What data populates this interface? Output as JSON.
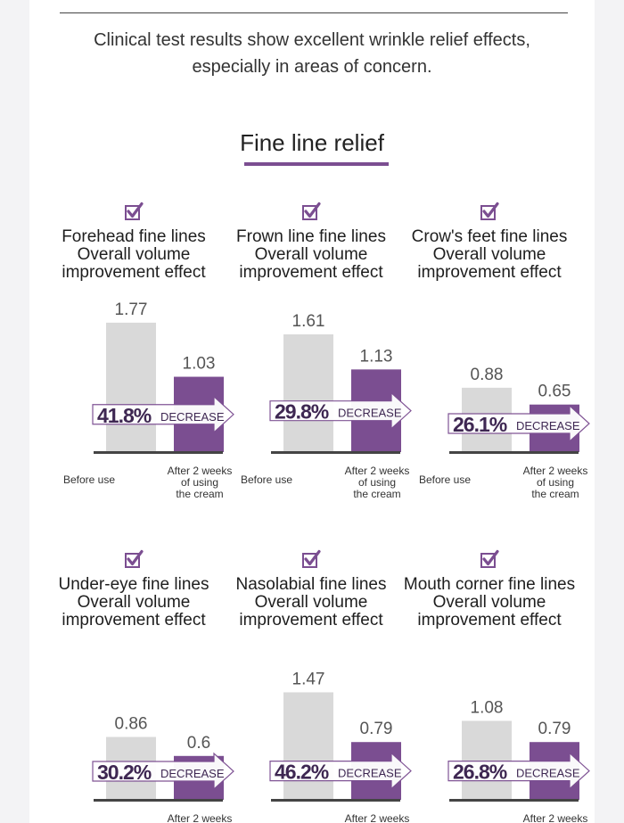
{
  "intro": {
    "line1": "Clinical test results show excellent wrinkle relief effects,",
    "line2": "especially in areas of concern."
  },
  "section_title": "Fine line relief",
  "colors": {
    "before_bar": "#d9d9d9",
    "after_bar": "#7b4e91",
    "accent_text": "#3e2752",
    "baseline": "#444444"
  },
  "icons": {
    "checkbox": "checkbox-checked-icon",
    "arrow": "arrow-right-icon"
  },
  "chart_data": [
    {
      "type": "bar",
      "title_lines": [
        "Forehead fine lines",
        "Overall volume",
        "improvement effect"
      ],
      "categories": [
        [
          "Before use"
        ],
        [
          "After 2 weeks",
          "of using",
          "the cream"
        ]
      ],
      "values": [
        1.77,
        1.03
      ],
      "value_labels": [
        "1.77",
        "1.03"
      ],
      "decrease_pct": "41.8%",
      "decrease_label": "DECREASE"
    },
    {
      "type": "bar",
      "title_lines": [
        "Frown line fine lines",
        "Overall volume",
        "improvement effect"
      ],
      "categories": [
        [
          "Before use"
        ],
        [
          "After 2 weeks",
          "of using",
          "the cream"
        ]
      ],
      "values": [
        1.61,
        1.13
      ],
      "value_labels": [
        "1.61",
        "1.13"
      ],
      "decrease_pct": "29.8%",
      "decrease_label": "DECREASE"
    },
    {
      "type": "bar",
      "title_lines": [
        "Crow's feet fine lines",
        "Overall volume",
        "improvement effect"
      ],
      "categories": [
        [
          "Before use"
        ],
        [
          "After 2 weeks",
          "of using",
          "the cream"
        ]
      ],
      "values": [
        0.88,
        0.65
      ],
      "value_labels": [
        "0.88",
        "0.65"
      ],
      "decrease_pct": "26.1%",
      "decrease_label": "DECREASE"
    },
    {
      "type": "bar",
      "title_lines": [
        "Under-eye fine lines",
        "Overall volume",
        "improvement effect"
      ],
      "categories": [
        [],
        [
          "After 2 weeks"
        ]
      ],
      "values": [
        0.86,
        0.6
      ],
      "value_labels": [
        "0.86",
        "0.6"
      ],
      "decrease_pct": "30.2%",
      "decrease_label": "DECREASE"
    },
    {
      "type": "bar",
      "title_lines": [
        "Nasolabial fine lines",
        "Overall volume",
        "improvement effect"
      ],
      "categories": [
        [],
        [
          "After 2 weeks"
        ]
      ],
      "values": [
        1.47,
        0.79
      ],
      "value_labels": [
        "1.47",
        "0.79"
      ],
      "decrease_pct": "46.2%",
      "decrease_label": "DECREASE"
    },
    {
      "type": "bar",
      "title_lines": [
        "Mouth corner fine lines",
        "Overall volume",
        "improvement effect"
      ],
      "categories": [
        [],
        [
          "After 2 weeks"
        ]
      ],
      "values": [
        1.08,
        0.79
      ],
      "value_labels": [
        "1.08",
        "0.79"
      ],
      "decrease_pct": "26.8%",
      "decrease_label": "DECREASE"
    }
  ]
}
